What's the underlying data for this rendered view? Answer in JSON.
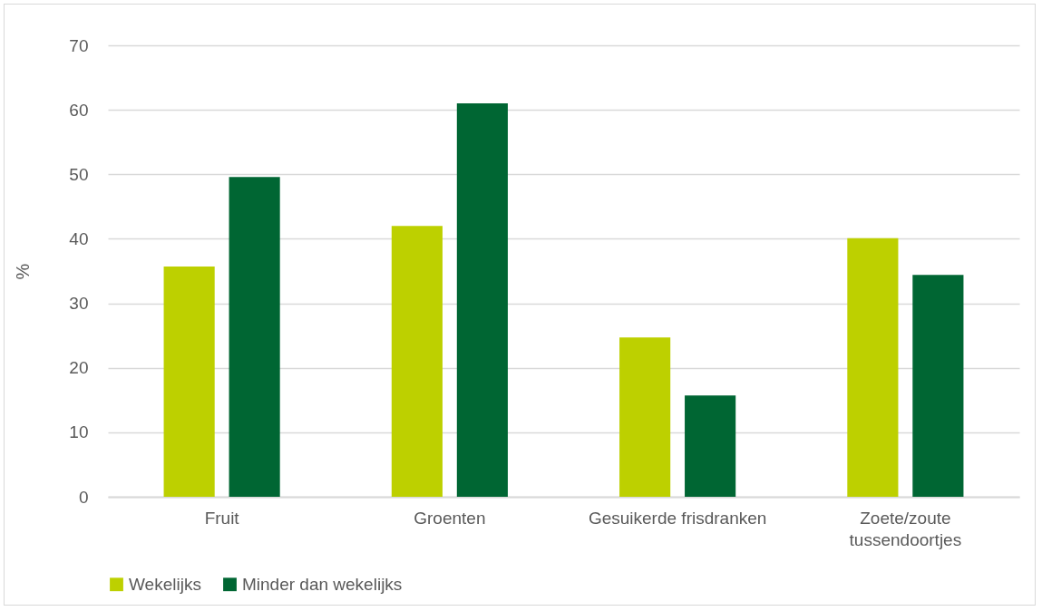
{
  "chart_data": {
    "type": "bar",
    "ylabel": "%",
    "categories": [
      "Fruit",
      "Groenten",
      "Gesuikerde frisdranken",
      "Zoete/zoute tussendoortjes"
    ],
    "series": [
      {
        "name": "Wekelijks",
        "color": "#bdd000",
        "values": [
          35.7,
          42.0,
          24.7,
          40.1
        ]
      },
      {
        "name": "Minder dan wekelijks",
        "color": "#006633",
        "values": [
          49.6,
          61.0,
          15.7,
          34.4
        ]
      }
    ],
    "ylim": [
      0,
      70
    ],
    "yticks": [
      0,
      10,
      20,
      30,
      40,
      50,
      60,
      70
    ],
    "grid": "y",
    "legend": "bottom"
  }
}
